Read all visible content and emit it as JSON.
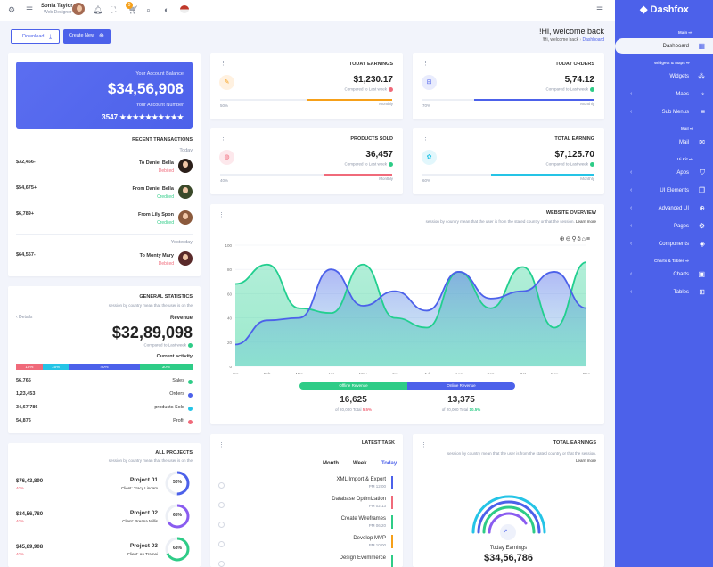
{
  "topbar": {
    "user_name": "Sonia Taylor",
    "user_role": "Web Designer",
    "cart_badge": "5"
  },
  "sidebar": {
    "brand": "Dashfox",
    "sections": [
      {
        "title": "Main"
      },
      {
        "title": "Widgets & Maps"
      },
      {
        "title": "Mail"
      },
      {
        "title": "Ui Kit"
      },
      {
        "title": "Charts & Tables"
      }
    ],
    "items": [
      {
        "label": "Dashboard",
        "icon": "dashboard-icon"
      },
      {
        "label": "Widgets",
        "icon": "widgets-icon"
      },
      {
        "label": "Maps",
        "icon": "map-pin-icon"
      },
      {
        "label": "Sub Menus",
        "icon": "menu-icon"
      },
      {
        "label": "Mail",
        "icon": "mail-icon"
      },
      {
        "label": "Apps",
        "icon": "shield-icon"
      },
      {
        "label": "UI Elements",
        "icon": "copy-icon"
      },
      {
        "label": "Advanced UI",
        "icon": "globe-icon"
      },
      {
        "label": "Pages",
        "icon": "gear-icon"
      },
      {
        "label": "Components",
        "icon": "layers-icon"
      },
      {
        "label": "Charts",
        "icon": "chart-icon"
      },
      {
        "label": "Tables",
        "icon": "table-icon"
      }
    ]
  },
  "header": {
    "download_label": "Download",
    "create_label": "Create New",
    "welcome": "!Hi, welcome back",
    "breadcrumb_home": "!Hi, welcome back",
    "breadcrumb_current": "Dashboard"
  },
  "balance": {
    "label": "Your Account Balance",
    "amount": "$34,56,908",
    "number_label": "Your Account Number",
    "number": "3547 ★★★★★★★★★★"
  },
  "transactions": {
    "title": "RECENT TRANSACTIONS",
    "today": "Today",
    "yesterday": "Yesterday",
    "rows": [
      {
        "amount": "$32,456-",
        "who": "To Daniel Bella",
        "status": "Debited",
        "color": "#f06a7a"
      },
      {
        "amount": "$54,675+",
        "who": "From Daniel Bella",
        "status": "Credited",
        "color": "#2ecc87"
      },
      {
        "amount": "$6,789+",
        "who": "From Lily Spon",
        "status": "Credited",
        "color": "#2ecc87"
      },
      {
        "amount": "$64,567-",
        "who": "To Monty Mary",
        "status": "Debited",
        "color": "#f06a7a"
      }
    ]
  },
  "stats": [
    {
      "title": "TODAY EARNINGS",
      "value": "$1,230.17",
      "compare": "Compared to Last week",
      "pct": "50%",
      "period": "Monthly",
      "fill": 0.5,
      "color": "#f6a019",
      "dot": "#f06a7a"
    },
    {
      "title": "TODAY ORDERS",
      "value": "5,74.12",
      "compare": "Compared to Last week",
      "pct": "70%",
      "period": "Monthly",
      "fill": 0.7,
      "color": "#4c61ea",
      "dot": "#2ecc87"
    },
    {
      "title": "PRODUCTS SOLD",
      "value": "36,457",
      "compare": "Compared to Last week",
      "pct": "40%",
      "period": "Monthly",
      "fill": 0.4,
      "color": "#f06a7a",
      "dot": "#2ecc87"
    },
    {
      "title": "TOTAL EARNING",
      "value": "$7,125.70",
      "compare": "Compared to Last week",
      "pct": "60%",
      "period": "Monthly",
      "fill": 0.6,
      "color": "#25c4e6",
      "dot": "#2ecc87"
    }
  ],
  "overview": {
    "title": "WEBSITE OVERVIEW",
    "subtitle": "session by country mean that the user is from the stated country or that the session.",
    "learn_more": "Learn more",
    "offline_label": "Offline Revenue",
    "online_label": "Online Revenue",
    "offline_value": "16,625",
    "offline_total": "of 20,000 Total",
    "offline_pct": "5.5%",
    "online_value": "13,375",
    "online_total": "of 20,000 Total",
    "online_pct": "10.5%"
  },
  "chart_data": {
    "type": "area",
    "x": [
      "Jan",
      "Feb",
      "Mar",
      "Apr",
      "May",
      "Jun",
      "Jul",
      "Aug",
      "Sep",
      "Oct",
      "Nov",
      "Dec"
    ],
    "ylim": [
      0,
      100
    ],
    "yticks": [
      0,
      20,
      40,
      60,
      80,
      100
    ],
    "series": [
      {
        "values": [
          68,
          84,
          48,
          44,
          84,
          40,
          32,
          78,
          48,
          82,
          32,
          86
        ],
        "color": "#22cf8f"
      },
      {
        "values": [
          18,
          38,
          40,
          80,
          50,
          62,
          46,
          78,
          56,
          62,
          78,
          48
        ],
        "color": "#4c61ea"
      }
    ]
  },
  "general": {
    "title": "GENERAL STATISTICS",
    "subtitle": "session by country mean that the user is on the",
    "details": "‹ Details",
    "revenue_label": "Revenue",
    "revenue": "$32,89,098",
    "compare": "Compared to Last week",
    "current_activity": "Current activity",
    "segments": [
      {
        "label": "15%",
        "value": 15,
        "color": "#f06a7a"
      },
      {
        "label": "15%",
        "value": 15,
        "color": "#25c4e6"
      },
      {
        "label": "40%",
        "value": 40,
        "color": "#4c61ea"
      },
      {
        "label": "30%",
        "value": 30,
        "color": "#2ecc87"
      }
    ],
    "rows": [
      {
        "value": "56,765",
        "label": "Sales",
        "color": "#2ecc87"
      },
      {
        "value": "1,23,453",
        "label": "Orders",
        "color": "#4c61ea"
      },
      {
        "value": "34,67,786",
        "label": "products Sold",
        "color": "#25c4e6"
      },
      {
        "value": "54,876",
        "label": "Profit",
        "color": "#f06a7a"
      }
    ]
  },
  "projects": {
    "title": "ALL PROJECTS",
    "subtitle": "session by country mean that the user is on the",
    "rows": [
      {
        "amount": "$76,43,890",
        "pct": "40%",
        "name": "Project 01",
        "client": "Client: Tracy Lindam",
        "progress": 50,
        "label": "50%",
        "color": "#4c61ea"
      },
      {
        "amount": "$34,56,780",
        "pct": "40%",
        "name": "Project 02",
        "client": "Client: Breana Millis",
        "progress": 65,
        "label": "65%",
        "color": "#8a5cf0"
      },
      {
        "amount": "$45,89,908",
        "pct": "40%",
        "name": "Project 03",
        "client": "Client: An Tramei",
        "progress": 68,
        "label": "68%",
        "color": "#2ecc87"
      }
    ]
  },
  "tasks": {
    "title": "LATEST TASK",
    "tabs": [
      "Month",
      "Week",
      "Today"
    ],
    "items": [
      {
        "name": "XML Import & Export",
        "time": "PM 12:00",
        "color": "#4c61ea"
      },
      {
        "name": "Database Optimization",
        "time": "PM 02:13",
        "color": "#f06a7a"
      },
      {
        "name": "Create Wireframes",
        "time": "PM 06:20",
        "color": "#2ecc87"
      },
      {
        "name": "Develop MVP",
        "time": "PM 10:00",
        "color": "#f6a019"
      },
      {
        "name": "Design Evommerce",
        "time": "",
        "color": "#2ecc87"
      }
    ]
  },
  "total_earnings": {
    "title": "TOTAL EARNINGS",
    "subtitle": "session by country mean that the user is from the stated country or that the session.",
    "learn_more": "Learn more",
    "label": "Today Earnings",
    "value": "$34,56,786"
  }
}
